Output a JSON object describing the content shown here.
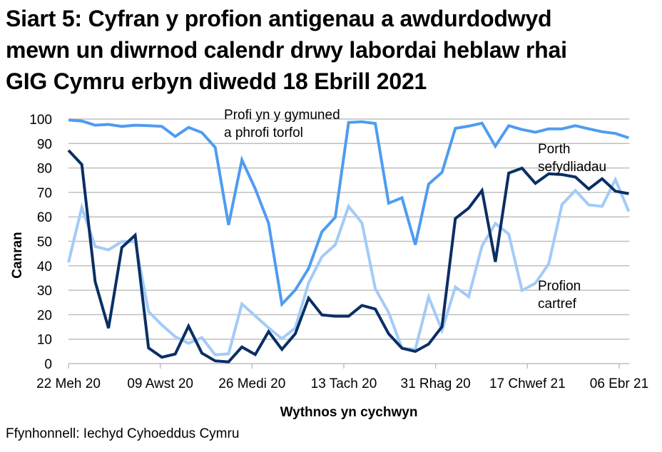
{
  "title_lines": [
    "Siart 5: Cyfran y profion antigenau a awdurdodwyd",
    "mewn un diwrnod calendr drwy labordai heblaw rhai",
    "GIG Cymru erbyn diwedd 18 Ebrill 2021"
  ],
  "source": "Ffynhonnell: Iechyd Cyhoeddus Cymru",
  "colors": {
    "community": "#4f9cf0",
    "porth": "#0a2f64",
    "cartref": "#a3cbf7",
    "grid": "#bfbfbf"
  },
  "chart_data": {
    "type": "line",
    "title": "Siart 5: Cyfran y profion antigenau a awdurdodwyd mewn un diwrnod calendr drwy labordai heblaw rhai GIG Cymru erbyn diwedd 18 Ebrill 2021",
    "xlabel": "Wythnos yn cychwyn",
    "ylabel": "Canran",
    "ylim": [
      0,
      100
    ],
    "yticks": [
      0,
      10,
      20,
      30,
      40,
      50,
      60,
      70,
      80,
      90,
      100
    ],
    "grid": true,
    "xtick_labels": [
      "22 Meh 20",
      "09 Awst 20",
      "26 Medi 20",
      "13 Tach 20",
      "31 Rhag 20",
      "17 Chwef 21",
      "06 Ebr 21"
    ],
    "xtick_every": 7,
    "n_points": 43,
    "series": [
      {
        "name": "Profi yn y gymuned a phrofi torfol",
        "label_lines": [
          "Profi yn y gymuned",
          "a phrofi torfol"
        ],
        "values": [
          99.6,
          99.2,
          97.5,
          97.8,
          97.0,
          97.5,
          97.3,
          97.0,
          92.9,
          96.6,
          94.5,
          88.4,
          56.7,
          83.3,
          71.5,
          57.4,
          24.3,
          30.1,
          38.9,
          53.9,
          59.8,
          98.6,
          98.9,
          98.2,
          65.6,
          67.8,
          48.6,
          73.4,
          78.2,
          96.2,
          97.1,
          98.3,
          88.9,
          97.3,
          95.7,
          94.6,
          96.0,
          96.0,
          97.3,
          96.0,
          94.8,
          94.1,
          92.3
        ]
      },
      {
        "name": "Porth sefydliadau",
        "label_lines": [
          "Porth",
          "sefydliadau"
        ],
        "values": [
          87.2,
          81.4,
          33.5,
          14.5,
          47.5,
          52.5,
          6.4,
          2.6,
          3.9,
          15.3,
          4.3,
          1.1,
          0.7,
          6.8,
          3.7,
          13.1,
          5.8,
          12.2,
          26.8,
          19.9,
          19.4,
          19.4,
          23.8,
          22.3,
          12.2,
          6.3,
          5.0,
          8.0,
          15.1,
          59.3,
          63.6,
          70.8,
          41.6,
          77.9,
          79.9,
          73.7,
          77.6,
          77.3,
          76.3,
          71.4,
          75.6,
          70.5,
          69.5
        ]
      },
      {
        "name": "Profion cartref",
        "label_lines": [
          "Profion",
          "cartref"
        ],
        "values": [
          41.4,
          63.9,
          47.9,
          46.5,
          49.9,
          49.9,
          21.3,
          15.8,
          11.0,
          8.3,
          10.6,
          3.6,
          4.0,
          24.4,
          19.5,
          14.6,
          10.2,
          14.6,
          33.0,
          43.7,
          48.6,
          64.3,
          57.5,
          30.6,
          20.9,
          6.3,
          5.8,
          27.2,
          13.6,
          31.3,
          27.4,
          48.1,
          57.3,
          53.0,
          29.9,
          32.9,
          40.8,
          65.1,
          70.8,
          64.9,
          64.3,
          75.3,
          62.2
        ]
      }
    ]
  }
}
